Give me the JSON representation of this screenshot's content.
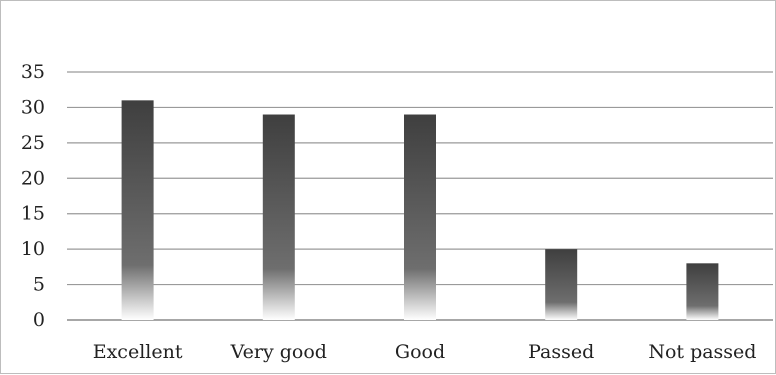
{
  "chart_data": {
    "type": "bar",
    "title": "",
    "xlabel": "",
    "ylabel": "",
    "categories": [
      "Excellent",
      "Very good",
      "Good",
      "Passed",
      "Not passed"
    ],
    "values": [
      31,
      29,
      29,
      10,
      8
    ],
    "ylim": [
      0,
      35
    ],
    "yticks": [
      "0",
      "5",
      "10",
      "15",
      "20",
      "25",
      "30",
      "35"
    ],
    "grid": true,
    "legend": "none",
    "bar_color_top": "#3f3f3f",
    "bar_color_bottom": "#ffffff",
    "grid_color": "#9a9a9a"
  }
}
